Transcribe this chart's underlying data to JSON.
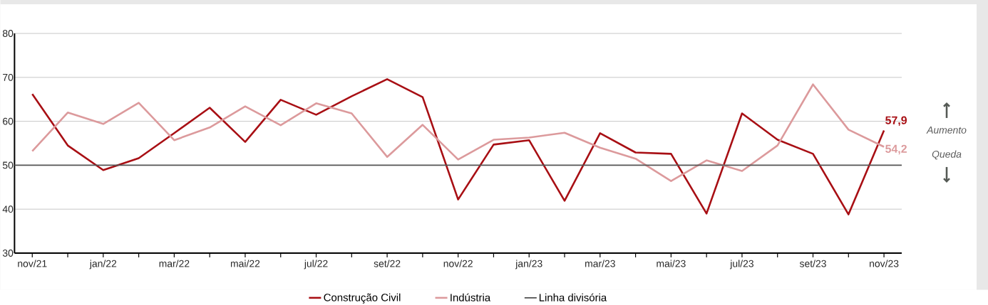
{
  "chart_data": {
    "type": "line",
    "categories": [
      "nov/21",
      null,
      "jan/22",
      null,
      "mar/22",
      null,
      "mai/22",
      null,
      "jul/22",
      null,
      "set/22",
      null,
      "nov/22",
      null,
      "jan/23",
      null,
      "mar/23",
      null,
      "mai/23",
      null,
      "jul/23",
      null,
      "set/23",
      null,
      "nov/23"
    ],
    "series": [
      {
        "name": "Construção Civil",
        "color": "#a80f14",
        "values": [
          66.2,
          54.5,
          48.9,
          51.6,
          57.3,
          63.1,
          55.3,
          64.9,
          61.5,
          65.7,
          69.6,
          65.5,
          42.2,
          54.7,
          55.7,
          41.9,
          57.3,
          52.9,
          52.6,
          39.0,
          61.8,
          55.8,
          52.6,
          38.8,
          57.9
        ],
        "value_labels": [
          null,
          null,
          null,
          null,
          null,
          null,
          null,
          null,
          null,
          null,
          null,
          null,
          null,
          null,
          null,
          null,
          null,
          null,
          null,
          null,
          null,
          null,
          null,
          null,
          "57,9"
        ]
      },
      {
        "name": "Indústria",
        "color": "#dc9a9c",
        "values": [
          53.2,
          62.0,
          59.4,
          64.2,
          55.7,
          58.6,
          63.4,
          59.1,
          64.1,
          61.8,
          51.9,
          59.2,
          51.3,
          55.8,
          56.3,
          57.4,
          54.0,
          51.5,
          46.4,
          51.1,
          48.7,
          54.5,
          68.4,
          58.1,
          54.2
        ],
        "value_labels": [
          null,
          null,
          null,
          null,
          null,
          null,
          null,
          null,
          null,
          null,
          null,
          null,
          null,
          null,
          null,
          null,
          null,
          null,
          null,
          null,
          null,
          null,
          null,
          null,
          "54,2"
        ]
      }
    ],
    "ylim": [
      30,
      80
    ],
    "yticks": [
      30,
      40,
      50,
      60,
      70,
      80
    ],
    "ref_lines": [
      {
        "axis": "y",
        "value": 50,
        "label": "Linha divisória",
        "color": "#555555"
      }
    ],
    "annotations": [
      "Aumento",
      "Queda"
    ],
    "grid": "y",
    "legend": "bottom",
    "marker": "none",
    "line_style": "solid"
  }
}
